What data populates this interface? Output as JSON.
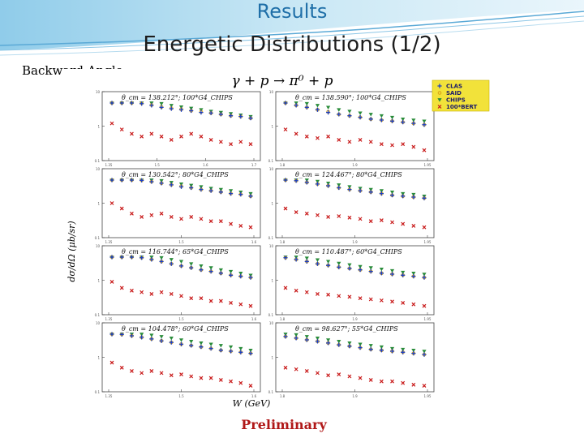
{
  "slide": {
    "title": "Results",
    "subtitle": "Energetic Distributions (1/2)",
    "side_label": "Backward Angle",
    "footer": "Preliminary"
  },
  "chart_data": {
    "type": "scatter",
    "title": "γ + p → π⁰ + p",
    "xlabel": "W (GeV)",
    "ylabel": "dσ/dΩ (μb/sr)",
    "y_log": true,
    "legend": {
      "placement": "top-right",
      "entries": [
        "CLAS",
        "SAID",
        "CHIPS",
        "100*BERT"
      ]
    },
    "colors": {
      "CLAS": "#1f3fbf",
      "SAID": "#d4a017",
      "CHIPS": "#2a8c3a",
      "BERT": "#c81818",
      "legend_bg": "#f2e23a"
    },
    "panels": [
      {
        "label": "θ_cm = 138.212°; 100*G4_CHIPS",
        "xlim": [
          1.3,
          1.75
        ],
        "ylim": [
          0.1,
          10
        ],
        "x_ticks": [
          "1.35",
          "1.5",
          "1.6",
          "1.7"
        ],
        "y_ticks": [
          "10",
          "1",
          "0.1"
        ],
        "series": {
          "CLAS": [
            6,
            5.5,
            5,
            4.5,
            4,
            3.5,
            3.2,
            3,
            2.8,
            2.5,
            2.4,
            2.2,
            2,
            1.9,
            1.7
          ],
          "SAID": [
            6,
            5.6,
            5.1,
            4.6,
            4.1,
            3.6,
            3.3,
            3.1,
            2.8,
            2.6,
            2.4,
            2.2,
            2,
            1.9,
            1.7
          ],
          "CHIPS": [
            7,
            6.5,
            6,
            5.5,
            5,
            4.5,
            4,
            3.6,
            3.3,
            3,
            2.7,
            2.5,
            2.3,
            2.1,
            1.9
          ],
          "BERT": [
            1.2,
            0.8,
            0.6,
            0.5,
            0.6,
            0.5,
            0.4,
            0.5,
            0.6,
            0.5,
            0.4,
            0.35,
            0.3,
            0.35,
            0.3
          ]
        }
      },
      {
        "label": "θ_cm = 138.590°; 100*G4_CHIPS",
        "xlim": [
          1.75,
          2.0
        ],
        "ylim": [
          0.1,
          10
        ],
        "x_ticks": [
          "1.8",
          "1.9",
          "1.95"
        ],
        "y_ticks": [
          "10",
          "1",
          "0.1"
        ],
        "series": {
          "CLAS": [
            5,
            4,
            3.5,
            3,
            2.5,
            2.2,
            2,
            1.8,
            1.6,
            1.5,
            1.4,
            1.3,
            1.2,
            1.1
          ],
          "SAID": [
            4.8,
            4,
            3.5,
            3,
            2.6,
            2.2,
            2,
            1.8,
            1.6,
            1.5,
            1.4,
            1.3,
            1.2,
            1.1
          ],
          "CHIPS": [
            6,
            5,
            4.5,
            4,
            3.5,
            3,
            2.7,
            2.4,
            2.2,
            2,
            1.8,
            1.6,
            1.5,
            1.4
          ],
          "BERT": [
            0.8,
            0.6,
            0.5,
            0.45,
            0.5,
            0.4,
            0.35,
            0.4,
            0.35,
            0.3,
            0.28,
            0.3,
            0.25,
            0.2
          ]
        }
      },
      {
        "label": "θ_cm = 130.542°; 80*G4_CHIPS",
        "xlim": [
          1.3,
          1.75
        ],
        "ylim": [
          0.1,
          10
        ],
        "x_ticks": [
          "1.35",
          "1.5",
          "1.6"
        ],
        "y_ticks": [
          "10",
          "1",
          "0.1"
        ],
        "series": {
          "CLAS": [
            6,
            5.5,
            5,
            4.6,
            4.2,
            3.8,
            3.4,
            3,
            2.8,
            2.5,
            2.3,
            2.1,
            1.9,
            1.8,
            1.6
          ],
          "SAID": [
            6,
            5.5,
            5,
            4.6,
            4.2,
            3.8,
            3.4,
            3.1,
            2.8,
            2.5,
            2.3,
            2.1,
            1.9,
            1.8,
            1.6
          ],
          "CHIPS": [
            7,
            6.5,
            6,
            5.4,
            5,
            4.5,
            4,
            3.6,
            3.3,
            3,
            2.7,
            2.5,
            2.3,
            2.1,
            1.9
          ],
          "BERT": [
            1,
            0.7,
            0.5,
            0.4,
            0.45,
            0.5,
            0.4,
            0.35,
            0.4,
            0.35,
            0.3,
            0.3,
            0.25,
            0.22,
            0.2
          ]
        }
      },
      {
        "label": "θ_cm = 124.467°; 80*G4_CHIPS",
        "xlim": [
          1.75,
          2.0
        ],
        "ylim": [
          0.1,
          10
        ],
        "x_ticks": [
          "1.8",
          "1.9",
          "1.95"
        ],
        "y_ticks": [
          "10",
          "1",
          "0.1"
        ],
        "series": {
          "CLAS": [
            5,
            4.5,
            4,
            3.6,
            3.2,
            2.8,
            2.5,
            2.3,
            2.1,
            1.9,
            1.7,
            1.6,
            1.5,
            1.4
          ],
          "SAID": [
            5,
            4.5,
            4,
            3.6,
            3.2,
            2.8,
            2.5,
            2.3,
            2.1,
            1.9,
            1.7,
            1.6,
            1.5,
            1.4
          ],
          "CHIPS": [
            6,
            5.4,
            4.8,
            4.3,
            3.8,
            3.4,
            3,
            2.7,
            2.5,
            2.3,
            2.1,
            1.9,
            1.8,
            1.6
          ],
          "BERT": [
            0.7,
            0.55,
            0.5,
            0.45,
            0.4,
            0.42,
            0.38,
            0.35,
            0.3,
            0.32,
            0.28,
            0.25,
            0.22,
            0.2
          ]
        }
      },
      {
        "label": "θ_cm = 116.744°; 65*G4_CHIPS",
        "xlim": [
          1.3,
          1.75
        ],
        "ylim": [
          0.1,
          10
        ],
        "x_ticks": [
          "1.35",
          "1.5",
          "1.6"
        ],
        "y_ticks": [
          "10",
          "1",
          "0.1"
        ],
        "series": {
          "CLAS": [
            6,
            5.5,
            5,
            4.5,
            4,
            3.5,
            3,
            2.6,
            2.3,
            2,
            1.8,
            1.6,
            1.4,
            1.3,
            1.2
          ],
          "SAID": [
            6,
            5.5,
            5,
            4.5,
            4,
            3.5,
            3,
            2.6,
            2.3,
            2,
            1.8,
            1.6,
            1.4,
            1.3,
            1.2
          ],
          "CHIPS": [
            7,
            6.5,
            6,
            5.5,
            5,
            4.5,
            4,
            3.5,
            3,
            2.6,
            2.3,
            2,
            1.8,
            1.6,
            1.4
          ],
          "BERT": [
            0.9,
            0.6,
            0.5,
            0.45,
            0.4,
            0.45,
            0.4,
            0.35,
            0.3,
            0.3,
            0.25,
            0.25,
            0.22,
            0.2,
            0.18
          ]
        }
      },
      {
        "label": "θ_cm = 110.487°; 60*G4_CHIPS",
        "xlim": [
          1.75,
          2.0
        ],
        "ylim": [
          0.1,
          10
        ],
        "x_ticks": [
          "1.8",
          "1.9",
          "1.95"
        ],
        "y_ticks": [
          "10",
          "1",
          "0.1"
        ],
        "series": {
          "CLAS": [
            4.5,
            4,
            3.5,
            3,
            2.7,
            2.4,
            2.2,
            2,
            1.8,
            1.6,
            1.5,
            1.4,
            1.3,
            1.2
          ],
          "SAID": [
            4.5,
            4,
            3.5,
            3,
            2.7,
            2.4,
            2.2,
            2,
            1.8,
            1.6,
            1.5,
            1.4,
            1.3,
            1.2
          ],
          "CHIPS": [
            5.5,
            5,
            4.4,
            3.9,
            3.5,
            3.1,
            2.8,
            2.5,
            2.3,
            2.1,
            1.9,
            1.7,
            1.6,
            1.5
          ],
          "BERT": [
            0.6,
            0.5,
            0.45,
            0.4,
            0.38,
            0.35,
            0.33,
            0.3,
            0.28,
            0.26,
            0.24,
            0.22,
            0.2,
            0.18
          ]
        }
      },
      {
        "label": "θ_cm = 104.478°; 60*G4_CHIPS",
        "xlim": [
          1.3,
          1.75
        ],
        "ylim": [
          0.1,
          10
        ],
        "x_ticks": [
          "1.35",
          "1.5",
          "1.6"
        ],
        "y_ticks": [
          "10",
          "1",
          "0.1"
        ],
        "series": {
          "CLAS": [
            5,
            4.6,
            4.2,
            3.8,
            3.4,
            3,
            2.7,
            2.4,
            2.2,
            2,
            1.8,
            1.6,
            1.5,
            1.4,
            1.3
          ],
          "SAID": [
            5,
            4.6,
            4.2,
            3.8,
            3.4,
            3,
            2.7,
            2.4,
            2.2,
            2,
            1.8,
            1.6,
            1.5,
            1.4,
            1.3
          ],
          "CHIPS": [
            6,
            5.6,
            5.2,
            4.8,
            4.4,
            4,
            3.6,
            3.2,
            2.9,
            2.6,
            2.4,
            2.2,
            2,
            1.8,
            1.6
          ],
          "BERT": [
            0.7,
            0.5,
            0.4,
            0.35,
            0.4,
            0.35,
            0.3,
            0.32,
            0.28,
            0.25,
            0.25,
            0.22,
            0.2,
            0.18,
            0.15
          ]
        }
      },
      {
        "label": "θ_cm = 98.627°; 55*G4_CHIPS",
        "xlim": [
          1.75,
          2.0
        ],
        "ylim": [
          0.1,
          10
        ],
        "x_ticks": [
          "1.8",
          "1.9",
          "1.95"
        ],
        "y_ticks": [
          "10",
          "1",
          "0.1"
        ],
        "series": {
          "CLAS": [
            4,
            3.6,
            3.2,
            2.9,
            2.6,
            2.3,
            2.1,
            1.9,
            1.7,
            1.6,
            1.5,
            1.4,
            1.3,
            1.2
          ],
          "SAID": [
            4,
            3.6,
            3.2,
            2.9,
            2.6,
            2.3,
            2.1,
            1.9,
            1.7,
            1.6,
            1.5,
            1.4,
            1.3,
            1.2
          ],
          "CHIPS": [
            5,
            4.5,
            4,
            3.6,
            3.2,
            2.9,
            2.6,
            2.4,
            2.2,
            2,
            1.8,
            1.7,
            1.6,
            1.5
          ],
          "BERT": [
            0.5,
            0.45,
            0.4,
            0.35,
            0.3,
            0.32,
            0.28,
            0.25,
            0.22,
            0.2,
            0.2,
            0.18,
            0.16,
            0.15
          ]
        }
      }
    ]
  }
}
